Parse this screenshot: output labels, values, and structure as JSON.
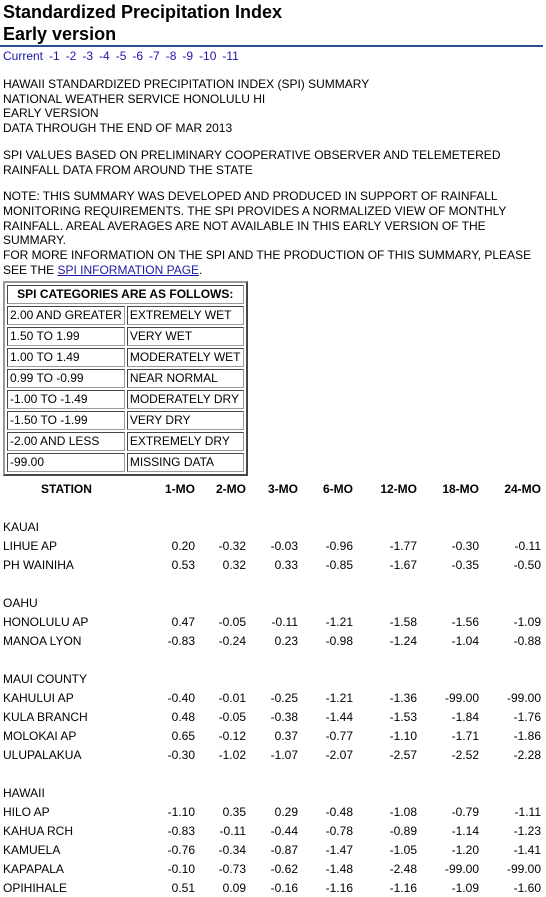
{
  "header": {
    "title_line1": "Standardized Precipitation Index",
    "title_line2": "Early version"
  },
  "nav": [
    "Current",
    "-1",
    "-2",
    "-3",
    "-4",
    "-5",
    "-6",
    "-7",
    "-8",
    "-9",
    "-10",
    "-11"
  ],
  "intro": [
    "HAWAII STANDARDIZED PRECIPITATION INDEX (SPI) SUMMARY",
    "NATIONAL WEATHER SERVICE HONOLULU HI",
    "EARLY VERSION",
    "DATA THROUGH THE END OF MAR 2013"
  ],
  "basis": [
    "SPI VALUES BASED ON PRELIMINARY COOPERATIVE OBSERVER AND TELEMETERED",
    "RAINFALL DATA FROM AROUND THE STATE"
  ],
  "note": {
    "lines": [
      "NOTE: THIS SUMMARY WAS DEVELOPED AND PRODUCED IN SUPPORT OF RAINFALL",
      "MONITORING REQUIREMENTS. THE SPI PROVIDES A NORMALIZED VIEW OF MONTHLY",
      "RAINFALL. AREAL AVERAGES ARE NOT AVAILABLE IN THIS EARLY VERSION OF THE SUMMARY.",
      "FOR MORE INFORMATION ON THE SPI AND THE PRODUCTION OF THIS SUMMARY, PLEASE"
    ],
    "last_prefix": "SEE THE ",
    "link_text": "SPI INFORMATION PAGE",
    "last_suffix": "."
  },
  "categories": {
    "header": "SPI CATEGORIES ARE AS FOLLOWS:",
    "rows": [
      [
        "2.00 AND GREATER",
        "EXTREMELY WET"
      ],
      [
        "1.50 TO 1.99",
        "VERY WET"
      ],
      [
        "1.00 TO 1.49",
        "MODERATELY WET"
      ],
      [
        "0.99 TO -0.99",
        "NEAR NORMAL"
      ],
      [
        "-1.00 TO -1.49",
        "MODERATELY DRY"
      ],
      [
        "-1.50 TO -1.99",
        "VERY DRY"
      ],
      [
        "-2.00 AND LESS",
        "EXTREMELY DRY"
      ],
      [
        "-99.00",
        "MISSING DATA"
      ]
    ]
  },
  "table": {
    "columns": [
      "STATION",
      "1-MO",
      "2-MO",
      "3-MO",
      "6-MO",
      "12-MO",
      "18-MO",
      "24-MO"
    ],
    "groups": [
      {
        "name": "KAUAI",
        "rows": [
          [
            "LIHUE AP",
            "0.20",
            "-0.32",
            "-0.03",
            "-0.96",
            "-1.77",
            "-0.30",
            "-0.11"
          ],
          [
            "PH WAINIHA",
            "0.53",
            "0.32",
            "0.33",
            "-0.85",
            "-1.67",
            "-0.35",
            "-0.50"
          ]
        ]
      },
      {
        "name": "OAHU",
        "rows": [
          [
            "HONOLULU AP",
            "0.47",
            "-0.05",
            "-0.11",
            "-1.21",
            "-1.58",
            "-1.56",
            "-1.09"
          ],
          [
            "MANOA LYON",
            "-0.83",
            "-0.24",
            "0.23",
            "-0.98",
            "-1.24",
            "-1.04",
            "-0.88"
          ]
        ]
      },
      {
        "name": "MAUI COUNTY",
        "rows": [
          [
            "KAHULUI AP",
            "-0.40",
            "-0.01",
            "-0.25",
            "-1.21",
            "-1.36",
            "-99.00",
            "-99.00"
          ],
          [
            "KULA BRANCH",
            "0.48",
            "-0.05",
            "-0.38",
            "-1.44",
            "-1.53",
            "-1.84",
            "-1.76"
          ],
          [
            "MOLOKAI AP",
            "0.65",
            "-0.12",
            "0.37",
            "-0.77",
            "-1.10",
            "-1.71",
            "-1.86"
          ],
          [
            "ULUPALAKUA",
            "-0.30",
            "-1.02",
            "-1.07",
            "-2.07",
            "-2.57",
            "-2.52",
            "-2.28"
          ]
        ]
      },
      {
        "name": "HAWAII",
        "rows": [
          [
            "HILO AP",
            "-1.10",
            "0.35",
            "0.29",
            "-0.48",
            "-1.08",
            "-0.79",
            "-1.11"
          ],
          [
            "KAHUA RCH",
            "-0.83",
            "-0.11",
            "-0.44",
            "-0.78",
            "-0.89",
            "-1.14",
            "-1.23"
          ],
          [
            "KAMUELA",
            "-0.76",
            "-0.34",
            "-0.87",
            "-1.47",
            "-1.05",
            "-1.20",
            "-1.41"
          ],
          [
            "KAPAPALA",
            "-0.10",
            "-0.73",
            "-0.62",
            "-1.48",
            "-2.48",
            "-99.00",
            "-99.00"
          ],
          [
            "OPIHIHALE",
            "0.51",
            "0.09",
            "-0.16",
            "-1.16",
            "-1.16",
            "-1.09",
            "-1.60"
          ]
        ]
      }
    ]
  }
}
